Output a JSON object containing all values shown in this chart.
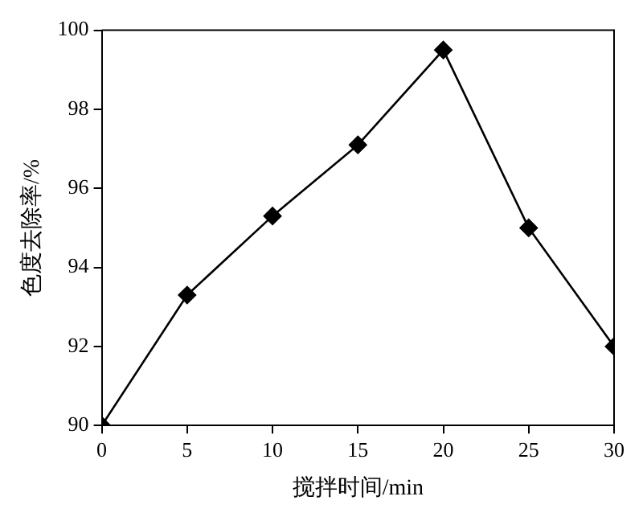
{
  "chart_data": {
    "type": "line",
    "xlabel": "搅拌时间/min",
    "ylabel": "色度去除率/%",
    "x": [
      0,
      5,
      10,
      15,
      20,
      25,
      30
    ],
    "series": [
      {
        "color": "#000000",
        "values": [
          90,
          93.3,
          95.3,
          97.1,
          99.5,
          95.0,
          92.0
        ]
      }
    ],
    "xlim": [
      0,
      30
    ],
    "xticks": [
      0,
      5,
      10,
      15,
      20,
      25,
      30
    ],
    "ylim": [
      90,
      100
    ],
    "yticks": [
      90,
      92,
      94,
      96,
      98,
      100
    ],
    "marker": "diamond",
    "line_style": "solid",
    "legend": false,
    "grid": false
  }
}
